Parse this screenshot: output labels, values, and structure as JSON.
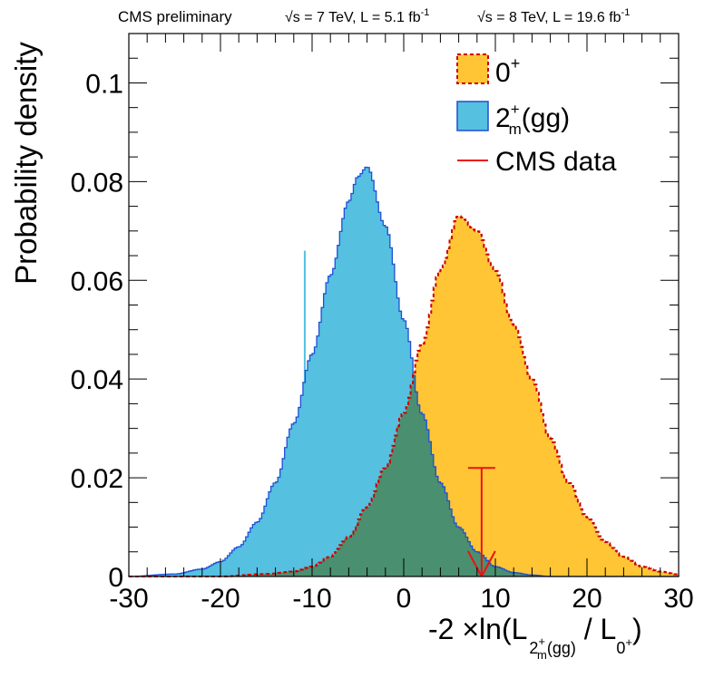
{
  "header": {
    "left": "CMS preliminary",
    "right1": "√s = 7 TeV, L = 5.1 fb",
    "right1_sup": "-1",
    "right2": "√s = 8 TeV, L = 19.6 fb",
    "right2_sup": "-1"
  },
  "axes": {
    "ylabel": "Probability density",
    "xlabel_prefix": "-2 ×ln(L",
    "xlabel_sub1_base": "2",
    "xlabel_sub1_sup": "+",
    "xlabel_sub1_sub": "m",
    "xlabel_sub1_tail": "(gg)",
    "xlabel_mid": " / L",
    "xlabel_sub2_base": "0",
    "xlabel_sub2_sup": "+",
    "xlabel_suffix": ")"
  },
  "legend": {
    "entry1": "0",
    "entry1_sup": "+",
    "entry2_base": "2",
    "entry2_sup": "+",
    "entry2_sub": "m",
    "entry2_tail": "(gg)",
    "entry3": "CMS data"
  },
  "colors": {
    "sm_fill": "#ffc534",
    "sm_line": "#cc0000",
    "alt_fill": "#55c0e0",
    "alt_line": "#1f4fd6",
    "overlap_fill": "#4a8f70",
    "data_line": "#ee1111"
  },
  "chart_data": {
    "type": "area",
    "xlim": [
      -30,
      30
    ],
    "ylim": [
      0,
      0.11
    ],
    "xticks": [
      -30,
      -20,
      -10,
      0,
      10,
      20,
      30
    ],
    "xtick_labels": [
      "-30",
      "-20",
      "-10",
      "0",
      "10",
      "20",
      "30"
    ],
    "yticks": [
      0,
      0.02,
      0.04,
      0.06,
      0.08,
      0.1
    ],
    "ytick_labels": [
      "0",
      "0.02",
      "0.04",
      "0.06",
      "0.08",
      "0.1"
    ],
    "grid": false,
    "legend_position": "top-right",
    "series": [
      {
        "name": "0+",
        "style": "filled histogram, dashed outline",
        "x": [
          -20,
          -15,
          -12,
          -10,
          -8,
          -6,
          -4,
          -2,
          0,
          2,
          4,
          6,
          8,
          10,
          12,
          14,
          16,
          18,
          20,
          22,
          24,
          26,
          28,
          30
        ],
        "y": [
          0,
          0.0005,
          0.001,
          0.002,
          0.004,
          0.008,
          0.014,
          0.022,
          0.033,
          0.047,
          0.062,
          0.073,
          0.07,
          0.062,
          0.051,
          0.04,
          0.028,
          0.019,
          0.012,
          0.007,
          0.004,
          0.002,
          0.001,
          0.0004
        ]
      },
      {
        "name": "2+m(gg)",
        "style": "filled histogram, solid outline",
        "x": [
          -30,
          -25,
          -22,
          -20,
          -18,
          -16,
          -14,
          -12,
          -10,
          -8,
          -6,
          -5,
          -4,
          -2,
          0,
          2,
          4,
          6,
          8,
          10,
          12,
          14,
          16
        ],
        "y": [
          0,
          0.0005,
          0.0015,
          0.003,
          0.006,
          0.011,
          0.019,
          0.031,
          0.045,
          0.061,
          0.076,
          0.081,
          0.083,
          0.071,
          0.052,
          0.033,
          0.019,
          0.01,
          0.005,
          0.002,
          0.0008,
          0.0003,
          0
        ]
      }
    ],
    "spike": {
      "x": -10.8,
      "y": 0.066
    },
    "observed": {
      "name": "CMS data",
      "x": 8.5,
      "y": 0.022
    }
  }
}
